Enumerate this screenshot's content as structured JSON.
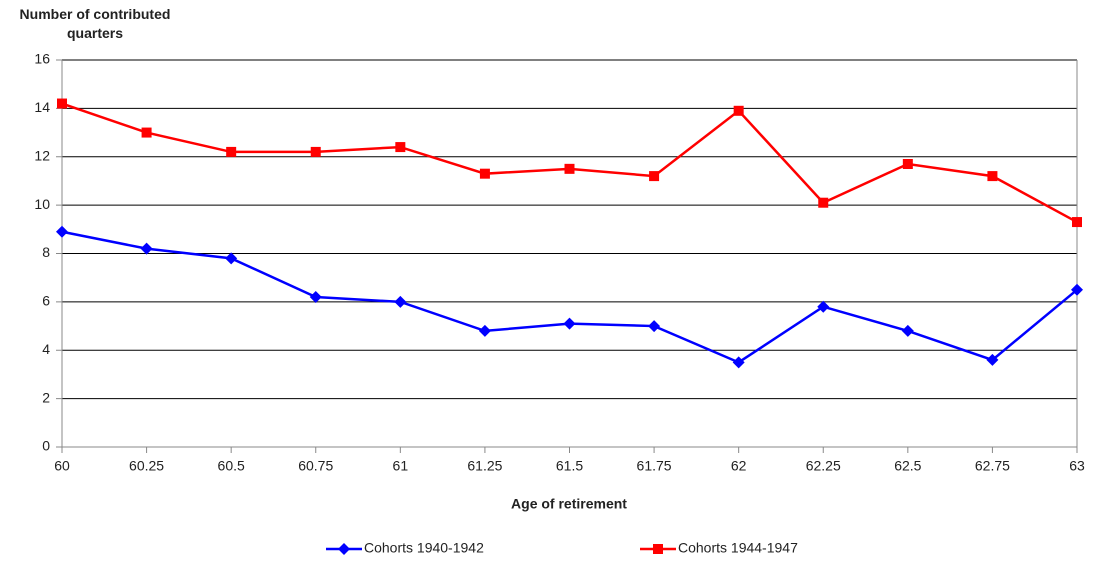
{
  "chart_data": {
    "type": "line",
    "ylabel": "Number of contributed quarters",
    "xlabel": "Age of retirement",
    "x": [
      60,
      60.25,
      60.5,
      60.75,
      61,
      61.25,
      61.5,
      61.75,
      62,
      62.25,
      62.5,
      62.75,
      63
    ],
    "series": [
      {
        "name": "Cohorts 1940-1942",
        "color": "#0000ff",
        "marker": "diamond",
        "values": [
          8.9,
          8.2,
          7.8,
          6.2,
          6.0,
          4.8,
          5.1,
          5.0,
          3.5,
          5.8,
          4.8,
          3.6,
          6.5
        ]
      },
      {
        "name": "Cohorts 1944-1947",
        "color": "#ff0000",
        "marker": "square",
        "values": [
          14.2,
          13.0,
          12.2,
          12.2,
          12.4,
          11.3,
          11.5,
          11.2,
          13.9,
          10.1,
          11.7,
          11.2,
          9.3
        ]
      }
    ],
    "xlim": [
      60,
      63
    ],
    "xticks": [
      60,
      60.25,
      60.5,
      60.75,
      61,
      61.25,
      61.5,
      61.75,
      62,
      62.25,
      62.5,
      62.75,
      63
    ],
    "ylim": [
      0,
      16
    ],
    "yticks": [
      0,
      2,
      4,
      6,
      8,
      10,
      12,
      14,
      16
    ],
    "grid": true,
    "legend": "bottom"
  }
}
